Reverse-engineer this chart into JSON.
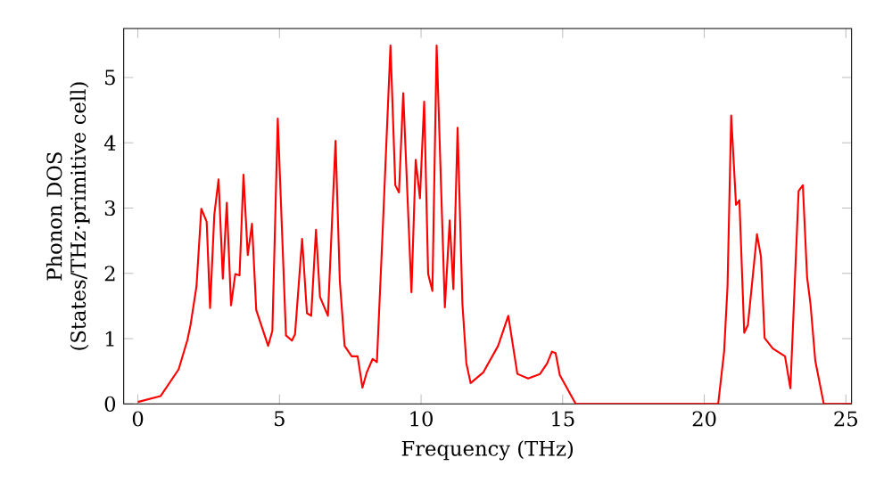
{
  "chart_data": {
    "type": "line",
    "xlabel": "Frequency (THz)",
    "ylabel": "Phonon DOS (States/THz·primitive cell)",
    "xlim": [
      -0.5,
      25.2
    ],
    "ylim": [
      0,
      5.75
    ],
    "xticks": [
      0,
      5,
      10,
      15,
      20,
      25
    ],
    "yticks": [
      0,
      1,
      2,
      3,
      4,
      5
    ],
    "marker": "none",
    "line_style": "solid",
    "series": [
      {
        "color": "#ff0000",
        "x": [
          0,
          0.8,
          1.44,
          1.75,
          1.86,
          2.07,
          2.24,
          2.43,
          2.55,
          2.7,
          2.85,
          3.0,
          3.14,
          3.29,
          3.44,
          3.59,
          3.73,
          3.88,
          4.03,
          4.18,
          4.6,
          4.75,
          4.94,
          5.23,
          5.44,
          5.55,
          5.8,
          5.97,
          6.12,
          6.29,
          6.43,
          6.71,
          6.98,
          7.13,
          7.3,
          7.55,
          7.76,
          7.93,
          8.08,
          8.29,
          8.44,
          8.65,
          8.92,
          9.09,
          9.22,
          9.37,
          9.66,
          9.81,
          9.96,
          10.11,
          10.25,
          10.4,
          10.55,
          10.84,
          11.01,
          11.14,
          11.29,
          11.46,
          11.6,
          11.75,
          12.19,
          12.72,
          13.08,
          13.4,
          13.78,
          14.2,
          14.45,
          14.62,
          14.75,
          14.9,
          15.46,
          20.49,
          20.7,
          20.82,
          20.95,
          21.12,
          21.24,
          21.41,
          21.54,
          21.86,
          22.0,
          22.13,
          22.42,
          22.85,
          23.04,
          23.33,
          23.48,
          23.63,
          23.75,
          23.92,
          24.22,
          25.2
        ],
        "values": [
          0.03,
          0.12,
          0.53,
          0.98,
          1.21,
          1.8,
          2.99,
          2.79,
          1.47,
          2.9,
          3.44,
          1.92,
          3.08,
          1.51,
          1.99,
          1.97,
          3.51,
          2.28,
          2.76,
          1.44,
          0.89,
          1.12,
          4.37,
          1.05,
          0.97,
          1.07,
          2.53,
          1.39,
          1.35,
          2.67,
          1.64,
          1.35,
          4.03,
          1.89,
          0.89,
          0.73,
          0.73,
          0.25,
          0.48,
          0.69,
          0.64,
          2.71,
          5.49,
          3.35,
          3.24,
          4.76,
          1.71,
          3.74,
          3.15,
          4.63,
          1.99,
          1.73,
          5.49,
          1.48,
          2.81,
          1.76,
          4.23,
          1.53,
          0.62,
          0.32,
          0.48,
          0.89,
          1.35,
          0.46,
          0.39,
          0.46,
          0.62,
          0.8,
          0.78,
          0.44,
          0,
          0,
          0.8,
          1.8,
          4.42,
          3.05,
          3.12,
          1.09,
          1.21,
          2.6,
          2.26,
          1.01,
          0.85,
          0.73,
          0.24,
          3.26,
          3.35,
          1.94,
          1.53,
          0.66,
          0,
          0
        ]
      }
    ]
  }
}
